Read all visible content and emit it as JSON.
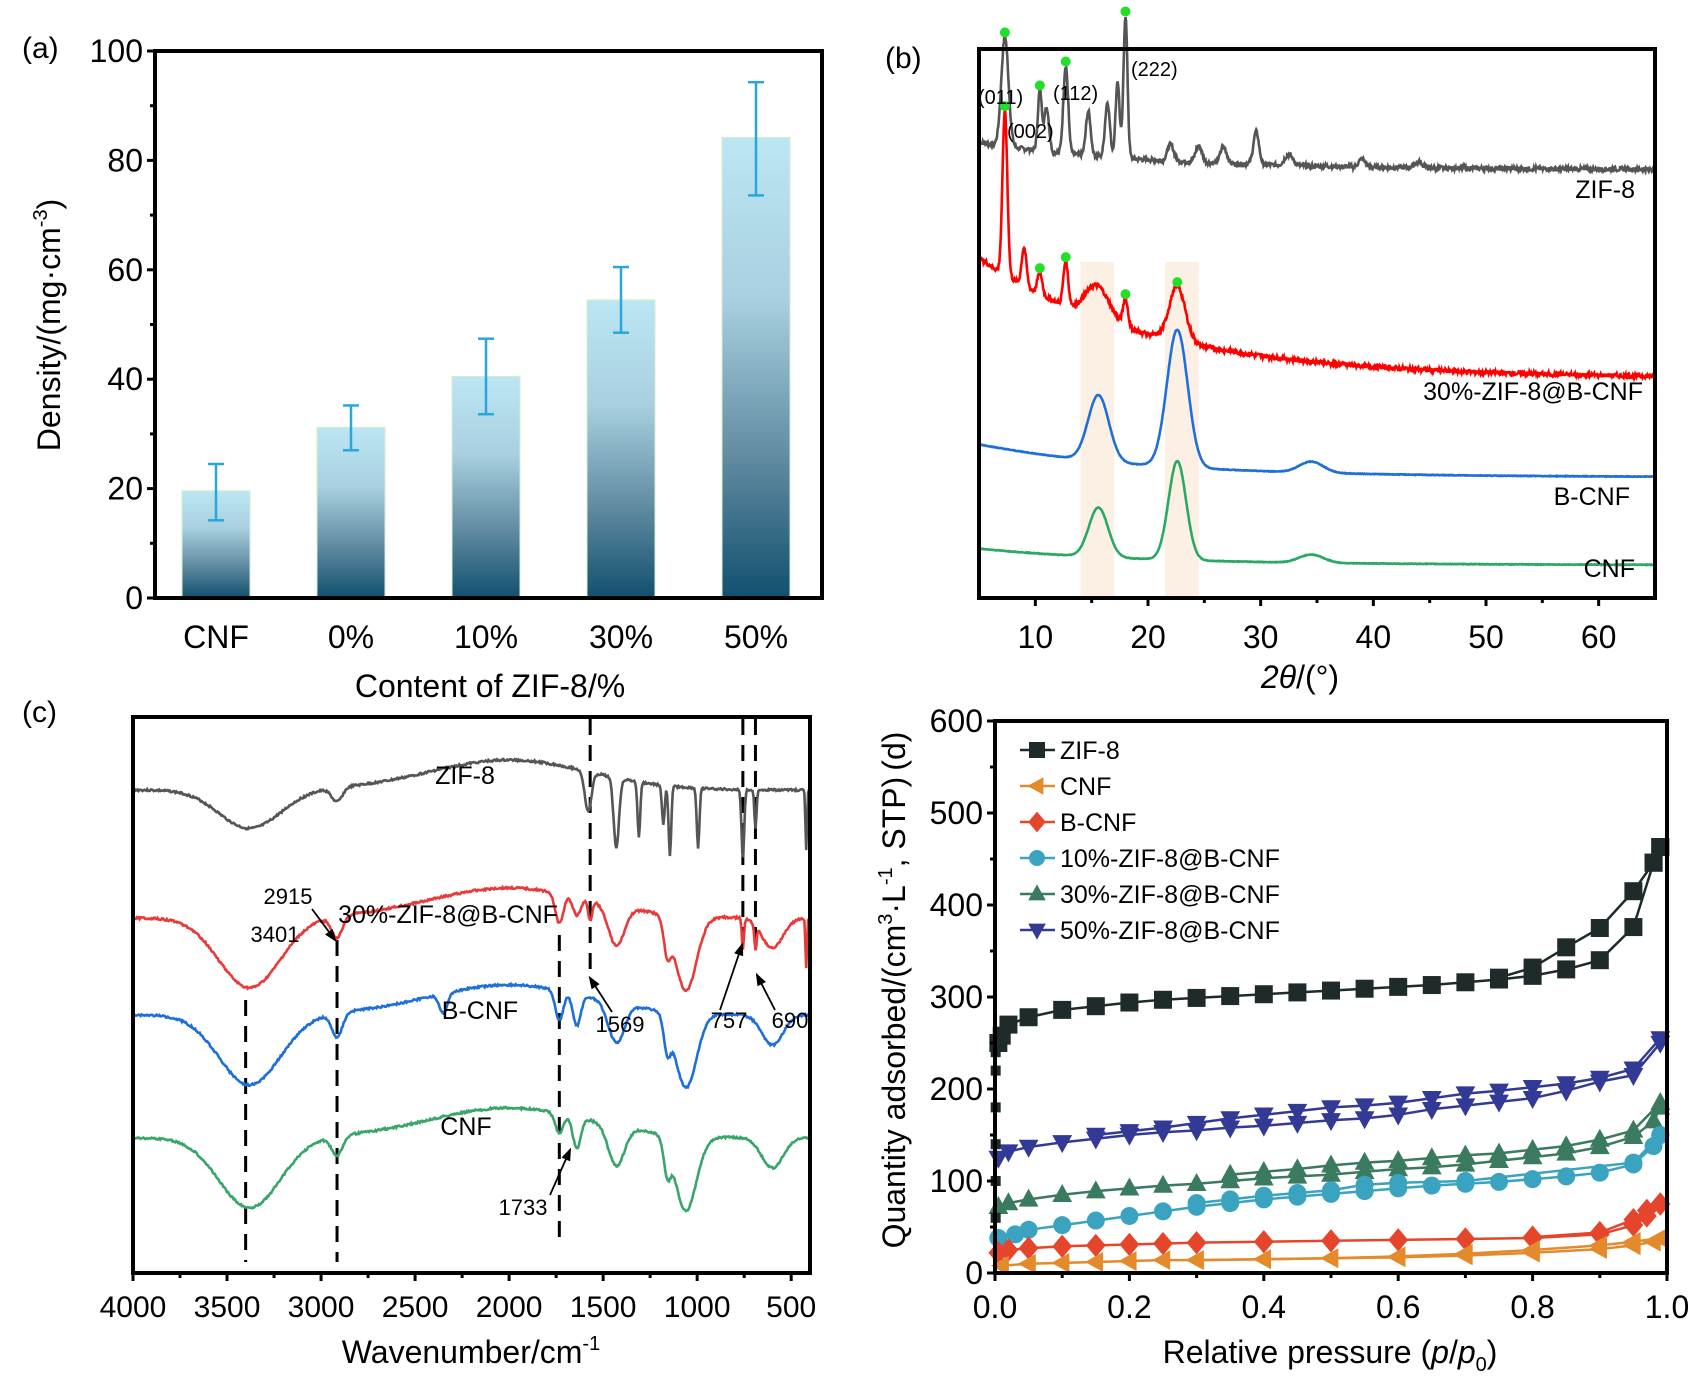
{
  "chart_data": [
    {
      "panel": "(a)",
      "type": "bar",
      "title": "",
      "xlabel": "Content of ZIF-8/%",
      "ylabel": "Density/(mg·cm⁻³)",
      "ylabel_parts": [
        "Density/(mg·cm",
        "-3",
        ")"
      ],
      "categories": [
        "CNF",
        "0%",
        "10%",
        "30%",
        "50%"
      ],
      "values": [
        19.6,
        31.2,
        40.5,
        54.5,
        84.2
      ],
      "errors_low": [
        14.2,
        27.0,
        33.6,
        48.5,
        73.6
      ],
      "errors_high": [
        24.5,
        35.2,
        47.4,
        60.5,
        94.3
      ],
      "ylim": [
        0,
        100
      ],
      "yticks": [
        0,
        20,
        40,
        60,
        80,
        100
      ],
      "colors": {
        "bar_top": "#bde6f4",
        "bar_bottom": "#11506f",
        "error": "#29a6dc"
      }
    },
    {
      "panel": "(b)",
      "type": "line",
      "title": "",
      "xlabel": "2θ/(°)",
      "xlim": [
        5,
        65
      ],
      "xticks": [
        10,
        20,
        30,
        40,
        50,
        60
      ],
      "ylabel": "",
      "highlight_bands": [
        [
          14,
          17
        ],
        [
          21.5,
          24.5
        ]
      ],
      "series": [
        {
          "name": "ZIF-8",
          "color": "#555555",
          "baseline": 0.78,
          "peaks": [
            [
              7.3,
              0.2,
              0.45
            ],
            [
              10.4,
              0.11,
              0.25
            ],
            [
              11.0,
              0.08,
              0.3
            ],
            [
              12.7,
              0.16,
              0.3
            ],
            [
              14.7,
              0.08,
              0.3
            ],
            [
              16.4,
              0.1,
              0.3
            ],
            [
              17.3,
              0.14,
              0.25
            ],
            [
              18.0,
              0.26,
              0.25
            ],
            [
              22.0,
              0.03,
              0.4
            ],
            [
              24.5,
              0.03,
              0.4
            ],
            [
              26.7,
              0.03,
              0.4
            ],
            [
              29.6,
              0.06,
              0.35
            ],
            [
              32.5,
              0.02,
              0.5
            ],
            [
              39.0,
              0.015,
              0.4
            ],
            [
              44.0,
              0.01,
              0.5
            ]
          ],
          "decay": 0.05
        },
        {
          "name": "30%-ZIF-8@B-CNF",
          "color": "#ff0000",
          "baseline": 0.4,
          "peaks": [
            [
              7.3,
              0.3,
              0.3
            ],
            [
              9.0,
              0.07,
              0.3
            ],
            [
              10.4,
              0.04,
              0.3
            ],
            [
              12.7,
              0.08,
              0.3
            ],
            [
              15.5,
              0.06,
              1.5
            ],
            [
              18.0,
              0.05,
              0.3
            ],
            [
              22.6,
              0.1,
              1.0
            ]
          ],
          "decay": 0.22
        },
        {
          "name": "B-CNF",
          "color": "#1f6fd9",
          "baseline": 0.22,
          "peaks": [
            [
              15.6,
              0.12,
              1.3
            ],
            [
              22.6,
              0.25,
              1.3
            ],
            [
              34.5,
              0.02,
              1.5
            ]
          ],
          "decay": 0.06
        },
        {
          "name": "CNF",
          "color": "#2aa865",
          "baseline": 0.06,
          "peaks": [
            [
              15.6,
              0.09,
              1.2
            ],
            [
              22.6,
              0.18,
              1.1
            ],
            [
              34.5,
              0.015,
              1.5
            ]
          ],
          "decay": 0.03
        }
      ],
      "peak_labels": [
        {
          "label": "(011)",
          "x": 7.3
        },
        {
          "label": "(002)",
          "x": 10.4
        },
        {
          "label": "(112)",
          "x": 12.7
        },
        {
          "label": "(222)",
          "x": 18.0
        }
      ],
      "marker_color": "#22e02a"
    },
    {
      "panel": "(c)",
      "type": "line",
      "title": "",
      "xlabel": "Wavenumber/cm⁻¹",
      "xlabel_parts": [
        "Wavenumber/cm",
        "-1"
      ],
      "xlim": [
        4000,
        400
      ],
      "xticks": [
        4000,
        3500,
        3000,
        2500,
        2000,
        1500,
        1000,
        500
      ],
      "dashed_lines": [
        3401,
        2915,
        1733,
        1569,
        757,
        690
      ],
      "annotations": [
        "3401",
        "2915",
        "1733",
        "1569",
        "757",
        "690"
      ],
      "series": [
        {
          "name": "ZIF-8",
          "color": "#555555"
        },
        {
          "name": "30%-ZIF-8@B-CNF",
          "color": "#e83a3a"
        },
        {
          "name": "B-CNF",
          "color": "#1f6fd9"
        },
        {
          "name": "CNF",
          "color": "#3aa56a"
        }
      ]
    },
    {
      "panel": "(d)",
      "type": "scatter",
      "title": "",
      "xlabel": "Relative pressure (p/p0)",
      "ylabel": "Quantity adsorbed/(cm³·L⁻¹, STP)",
      "xlim": [
        0,
        1.0
      ],
      "ylim": [
        0,
        600
      ],
      "xticks": [
        "0.0",
        "0.2",
        "0.4",
        "0.6",
        "0.8",
        "1.0"
      ],
      "yticks": [
        0,
        100,
        200,
        300,
        400,
        500,
        600
      ],
      "legend_position": "top-left",
      "series": [
        {
          "name": "ZIF-8",
          "color": "#1f2a2a",
          "marker": "square",
          "x": [
            0.005,
            0.01,
            0.02,
            0.05,
            0.1,
            0.15,
            0.2,
            0.25,
            0.3,
            0.35,
            0.4,
            0.45,
            0.5,
            0.55,
            0.6,
            0.65,
            0.7,
            0.75,
            0.8,
            0.85,
            0.9,
            0.95,
            0.98,
            0.99
          ],
          "adsorption": [
            250,
            258,
            270,
            278,
            286,
            290,
            294,
            297,
            299,
            301,
            303,
            305,
            307,
            309,
            311,
            313,
            316,
            319,
            323,
            330,
            340,
            376,
            446,
            463
          ],
          "desorption_x": [
            0.99,
            0.98,
            0.95,
            0.9,
            0.85,
            0.8,
            0.75
          ],
          "desorption": [
            463,
            446,
            415,
            375,
            354,
            332,
            321
          ]
        },
        {
          "name": "CNF",
          "color": "#e58a2a",
          "marker": "triangle-left",
          "x": [
            0.01,
            0.05,
            0.1,
            0.15,
            0.2,
            0.25,
            0.3,
            0.4,
            0.5,
            0.6,
            0.7,
            0.8,
            0.9,
            0.95,
            0.98,
            0.99
          ],
          "adsorption": [
            8,
            10,
            11,
            12,
            13,
            14,
            14,
            15,
            16,
            17,
            19,
            22,
            26,
            30,
            34,
            38
          ],
          "desorption_x": [
            0.99,
            0.95,
            0.9,
            0.8,
            0.7,
            0.6,
            0.5,
            0.4,
            0.3
          ],
          "desorption": [
            38,
            34,
            30,
            25,
            21,
            18,
            16,
            15,
            14
          ]
        },
        {
          "name": "B-CNF",
          "color": "#e5452a",
          "marker": "diamond",
          "x": [
            0.005,
            0.02,
            0.05,
            0.1,
            0.15,
            0.2,
            0.25,
            0.3,
            0.4,
            0.5,
            0.6,
            0.7,
            0.8,
            0.9,
            0.95,
            0.97,
            0.99
          ],
          "adsorption": [
            22,
            25,
            27,
            29,
            30,
            31,
            32,
            33,
            34,
            35,
            36,
            37,
            38,
            42,
            52,
            62,
            75
          ],
          "desorption_x": [
            0.99,
            0.97,
            0.95,
            0.9,
            0.8
          ],
          "desorption": [
            75,
            68,
            58,
            44,
            39
          ]
        },
        {
          "name": "10%-ZIF-8@B-CNF",
          "color": "#3aa3c0",
          "marker": "circle",
          "x": [
            0.005,
            0.03,
            0.05,
            0.1,
            0.15,
            0.2,
            0.25,
            0.3,
            0.35,
            0.4,
            0.45,
            0.5,
            0.55,
            0.6,
            0.65,
            0.7,
            0.75,
            0.8,
            0.85,
            0.9,
            0.95,
            0.98,
            0.99
          ],
          "adsorption": [
            38,
            42,
            47,
            52,
            57,
            62,
            67,
            72,
            76,
            80,
            83,
            86,
            89,
            92,
            95,
            97,
            99,
            102,
            105,
            109,
            118,
            138,
            150
          ],
          "desorption_x": [
            0.99,
            0.95,
            0.7,
            0.6,
            0.55,
            0.5,
            0.45,
            0.4,
            0.35,
            0.3
          ],
          "desorption": [
            150,
            120,
            100,
            98,
            96,
            90,
            87,
            84,
            80,
            76
          ]
        },
        {
          "name": "30%-ZIF-8@B-CNF",
          "color": "#3a7a5e",
          "marker": "triangle-up",
          "x": [
            0.005,
            0.02,
            0.05,
            0.1,
            0.15,
            0.2,
            0.25,
            0.3,
            0.35,
            0.4,
            0.45,
            0.5,
            0.55,
            0.6,
            0.65,
            0.7,
            0.75,
            0.8,
            0.85,
            0.9,
            0.95,
            0.98,
            0.99
          ],
          "adsorption": [
            72,
            76,
            80,
            85,
            89,
            92,
            95,
            97,
            100,
            103,
            105,
            107,
            110,
            113,
            115,
            118,
            122,
            126,
            130,
            137,
            148,
            165,
            180
          ],
          "desorption_x": [
            0.99,
            0.95,
            0.9,
            0.85,
            0.8,
            0.75,
            0.7,
            0.65,
            0.6,
            0.55,
            0.5,
            0.45,
            0.4,
            0.35
          ],
          "desorption": [
            185,
            155,
            145,
            138,
            134,
            130,
            128,
            125,
            122,
            120,
            117,
            113,
            110,
            107
          ]
        },
        {
          "name": "50%-ZIF-8@B-CNF",
          "color": "#333a96",
          "marker": "triangle-down",
          "x": [
            0.005,
            0.02,
            0.05,
            0.1,
            0.15,
            0.2,
            0.25,
            0.3,
            0.35,
            0.4,
            0.45,
            0.5,
            0.55,
            0.6,
            0.65,
            0.7,
            0.75,
            0.8,
            0.85,
            0.9,
            0.95,
            0.99
          ],
          "adsorption": [
            125,
            132,
            137,
            142,
            146,
            150,
            153,
            155,
            158,
            160,
            163,
            166,
            168,
            172,
            178,
            182,
            186,
            190,
            198,
            208,
            215,
            250
          ],
          "desorption_x": [
            0.99,
            0.95,
            0.9,
            0.85,
            0.8,
            0.75,
            0.7,
            0.65,
            0.6,
            0.55,
            0.5,
            0.45,
            0.4,
            0.35,
            0.3,
            0.25,
            0.2,
            0.15
          ],
          "desorption": [
            255,
            222,
            212,
            206,
            202,
            198,
            195,
            190,
            185,
            182,
            180,
            176,
            172,
            168,
            163,
            158,
            154,
            150
          ]
        }
      ]
    }
  ]
}
